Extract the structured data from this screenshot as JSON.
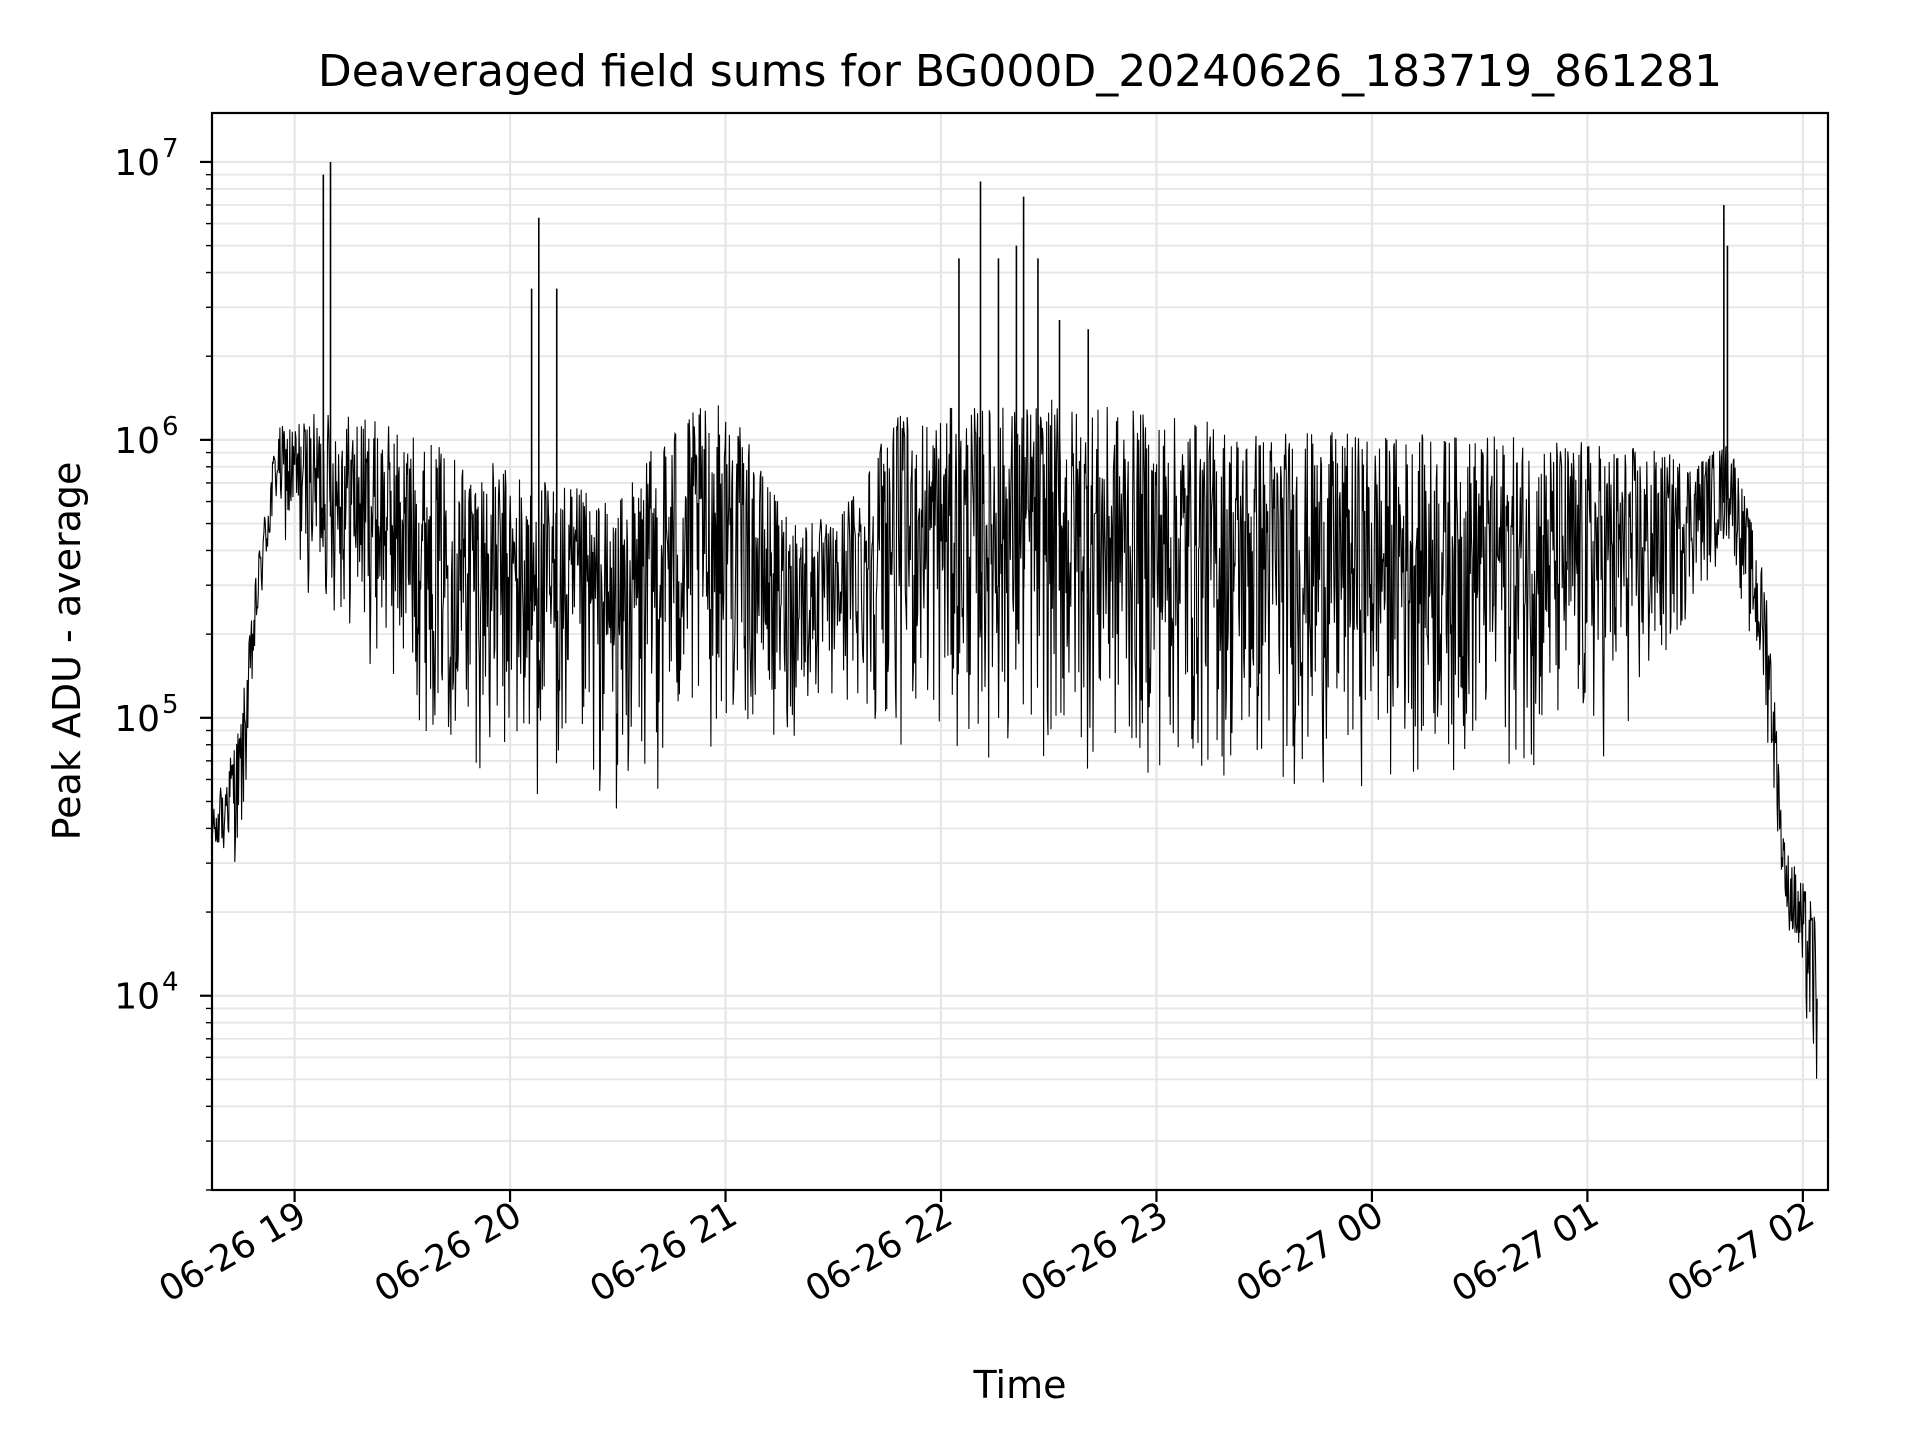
{
  "chart_data": {
    "type": "line",
    "title": "Deaveraged field sums for BG000D_20240626_183719_861281",
    "xlabel": "Time",
    "ylabel": "Peak ADU - average",
    "y_scale": "log",
    "grid": "on",
    "x_range": [
      "06-26 18:37",
      "06-27 02:07"
    ],
    "ylim": [
      2000,
      15000000
    ],
    "x_ticks": [
      "06-26 19",
      "06-26 20",
      "06-26 21",
      "06-26 22",
      "06-26 23",
      "06-27 00",
      "06-27 01",
      "06-27 02"
    ],
    "y_ticks": [
      {
        "base": "10",
        "exp": "4",
        "value": 10000
      },
      {
        "base": "10",
        "exp": "5",
        "value": 100000
      },
      {
        "base": "10",
        "exp": "6",
        "value": 1000000
      },
      {
        "base": "10",
        "exp": "7",
        "value": 10000000
      }
    ],
    "series": [
      {
        "color": "#000000",
        "envelope": [
          {
            "x": "06-26 18:37",
            "low": 35000,
            "high": 45000
          },
          {
            "x": "06-26 18:45",
            "low": 28000,
            "high": 100000
          },
          {
            "x": "06-26 18:50",
            "low": 200000,
            "high": 400000
          },
          {
            "x": "06-26 18:55",
            "low": 500000,
            "high": 1100000
          },
          {
            "x": "06-26 19:00",
            "low": 300000,
            "high": 1200000
          },
          {
            "x": "06-26 19:13",
            "low": 200000,
            "high": 1300000
          },
          {
            "x": "06-26 19:30",
            "low": 100000,
            "high": 1100000
          },
          {
            "x": "06-26 19:45",
            "low": 70000,
            "high": 900000
          },
          {
            "x": "06-26 20:00",
            "low": 50000,
            "high": 800000
          },
          {
            "x": "06-26 20:15",
            "low": 45000,
            "high": 700000
          },
          {
            "x": "06-26 20:30",
            "low": 40000,
            "high": 600000
          },
          {
            "x": "06-26 20:45",
            "low": 50000,
            "high": 1200000
          },
          {
            "x": "06-26 21:00",
            "low": 80000,
            "high": 1400000
          },
          {
            "x": "06-26 21:15",
            "low": 70000,
            "high": 600000
          },
          {
            "x": "06-26 21:30",
            "low": 100000,
            "high": 500000
          },
          {
            "x": "06-26 21:45",
            "low": 80000,
            "high": 1200000
          },
          {
            "x": "06-26 22:00",
            "low": 70000,
            "high": 1300000
          },
          {
            "x": "06-26 22:30",
            "low": 60000,
            "high": 1400000
          },
          {
            "x": "06-26 23:00",
            "low": 55000,
            "high": 1250000
          },
          {
            "x": "06-26 23:30",
            "low": 50000,
            "high": 1100000
          },
          {
            "x": "06-27 00:00",
            "low": 55000,
            "high": 1050000
          },
          {
            "x": "06-27 00:30",
            "low": 60000,
            "high": 1050000
          },
          {
            "x": "06-27 01:00",
            "low": 60000,
            "high": 1000000
          },
          {
            "x": "06-27 01:15",
            "low": 80000,
            "high": 950000
          },
          {
            "x": "06-27 01:30",
            "low": 250000,
            "high": 850000
          },
          {
            "x": "06-27 01:40",
            "low": 400000,
            "high": 1000000
          },
          {
            "x": "06-27 01:50",
            "low": 80000,
            "high": 300000
          },
          {
            "x": "06-27 01:55",
            "low": 22000,
            "high": 35000
          },
          {
            "x": "06-27 02:04",
            "low": 3500,
            "high": 20000
          }
        ],
        "spikes": [
          {
            "x": "06-26 19:08",
            "y": 9000000
          },
          {
            "x": "06-26 19:10",
            "y": 10000000
          },
          {
            "x": "06-26 20:06",
            "y": 3500000
          },
          {
            "x": "06-26 20:08",
            "y": 6300000
          },
          {
            "x": "06-26 20:13",
            "y": 3500000
          },
          {
            "x": "06-26 22:05",
            "y": 4500000
          },
          {
            "x": "06-26 22:11",
            "y": 8500000
          },
          {
            "x": "06-26 22:16",
            "y": 4500000
          },
          {
            "x": "06-26 22:21",
            "y": 5000000
          },
          {
            "x": "06-26 22:23",
            "y": 7500000
          },
          {
            "x": "06-26 22:27",
            "y": 4500000
          },
          {
            "x": "06-26 22:33",
            "y": 2700000
          },
          {
            "x": "06-26 22:41",
            "y": 2500000
          },
          {
            "x": "06-27 01:38",
            "y": 7000000
          },
          {
            "x": "06-27 01:39",
            "y": 5000000
          }
        ]
      }
    ]
  }
}
